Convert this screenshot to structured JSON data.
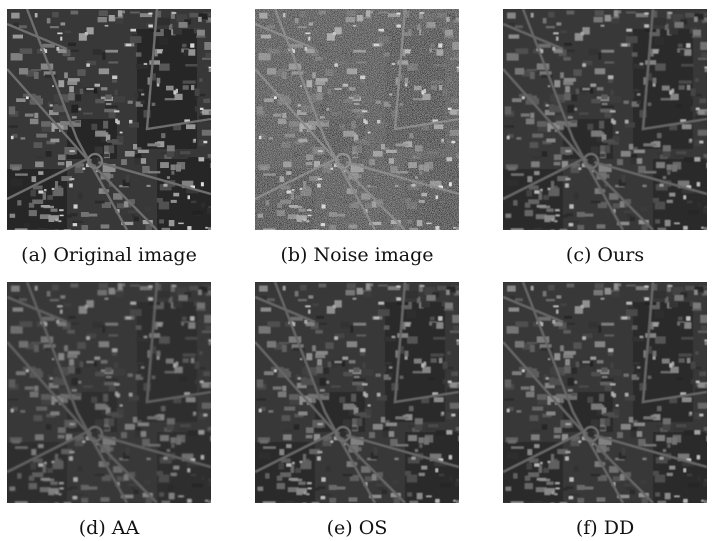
{
  "panels": [
    {
      "caption": "(a) Original image",
      "variant": "original"
    },
    {
      "caption": "(b) Noise image",
      "variant": "noise"
    },
    {
      "caption": "(c) Ours",
      "variant": "smooth"
    },
    {
      "caption": "(d) AA",
      "variant": "blur"
    },
    {
      "caption": "(e) OS",
      "variant": "smooth"
    },
    {
      "caption": "(f) DD",
      "variant": "smooth"
    }
  ],
  "colors": {
    "background": "#ffffff",
    "text": "#111111"
  }
}
